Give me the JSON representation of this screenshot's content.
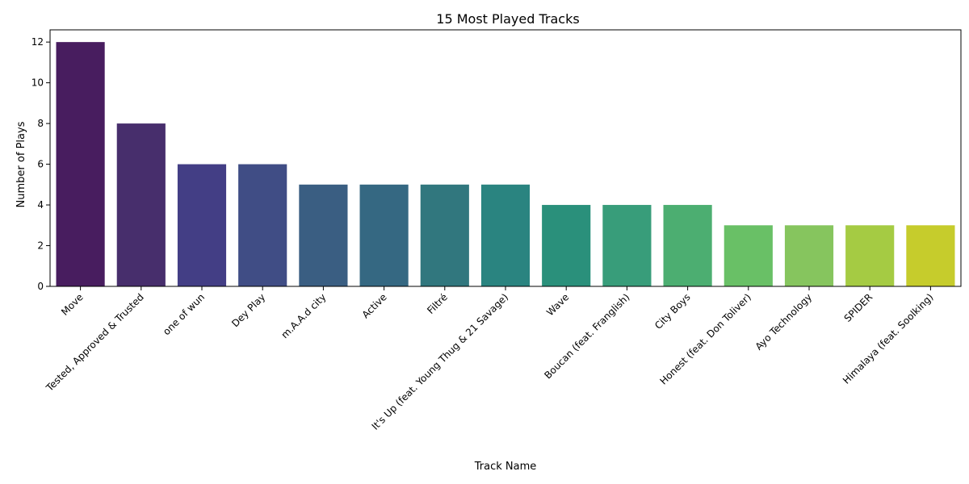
{
  "chart_data": {
    "type": "bar",
    "title": "15 Most Played Tracks",
    "xlabel": "Track Name",
    "ylabel": "Number of Plays",
    "ylim": [
      0,
      12.6
    ],
    "yticks": [
      0,
      2,
      4,
      6,
      8,
      10,
      12
    ],
    "grid": false,
    "legend": "none",
    "categories": [
      "Move",
      "Tested, Approved & Trusted",
      "one of wun",
      "Dey Play",
      "m.A.A.d city",
      "Active",
      "Filtré",
      "It's Up (feat. Young Thug & 21 Savage)",
      "Wave",
      "Boucan (feat. Franglish)",
      "City Boys",
      "Honest (feat. Don Toliver)",
      "Ayo Technology",
      "SPIDER",
      "Himalaya (feat. Soolking)"
    ],
    "values": [
      12,
      8,
      6,
      6,
      5,
      5,
      5,
      5,
      4,
      4,
      4,
      3,
      3,
      3,
      3
    ],
    "colors": [
      "#481d5f",
      "#472e6c",
      "#433e85",
      "#404d85",
      "#3a5e82",
      "#356882",
      "#31777e",
      "#2a8480",
      "#2a907b",
      "#389d7a",
      "#4cae71",
      "#69c066",
      "#86c55e",
      "#a5cb43",
      "#c6cc2c"
    ]
  }
}
